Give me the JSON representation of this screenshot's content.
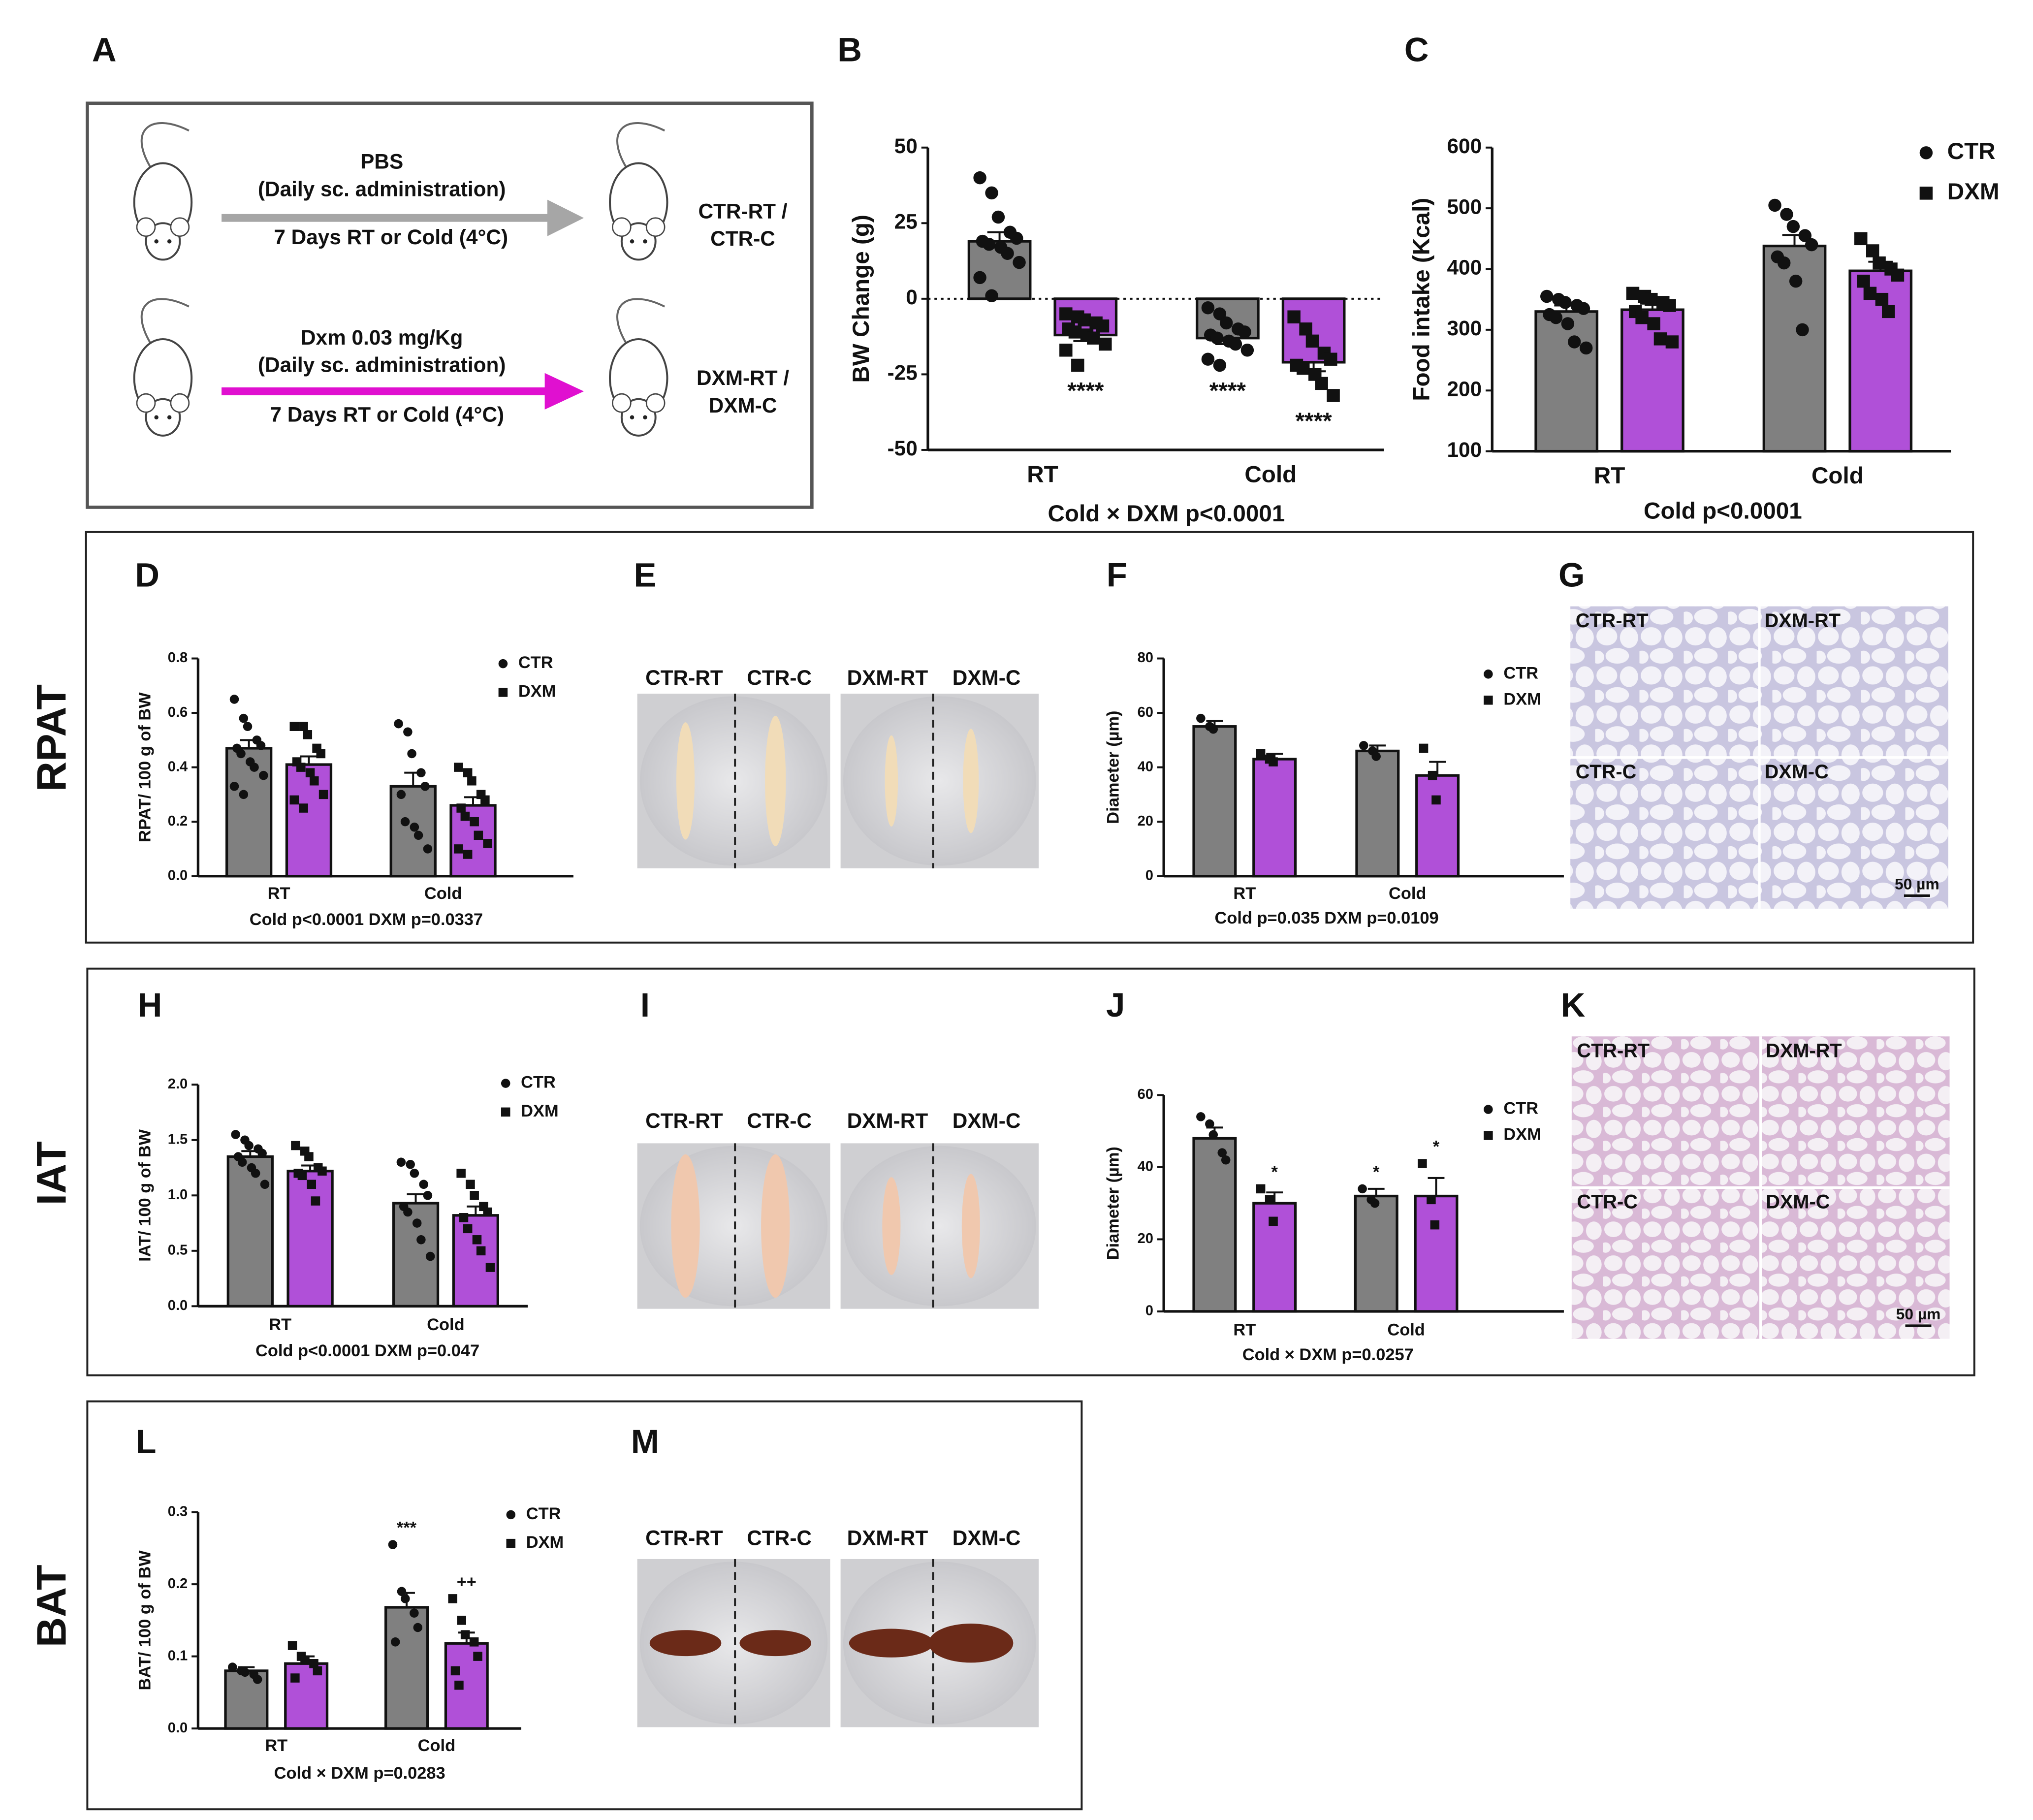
{
  "sections": [
    "RPAT",
    "IAT",
    "BAT"
  ],
  "diagram": {
    "panel": "A",
    "top": {
      "drug": "PBS",
      "route": "(Daily sc. administration)",
      "period": "7 Days RT or Cold (4°C)",
      "group_a": "CTR-RT /",
      "group_b": "CTR-C"
    },
    "bottom": {
      "drug": "Dxm 0.03 mg/Kg",
      "route": "(Daily sc. administration)",
      "period": "7 Days RT or Cold (4°C)",
      "group_a": "DXM-RT /",
      "group_b": "DXM-C"
    }
  },
  "photos": [
    {
      "panel": "E",
      "labels": [
        "CTR-RT",
        "CTR-C",
        "DXM-RT",
        "DXM-C"
      ]
    },
    {
      "panel": "I",
      "labels": [
        "CTR-RT",
        "CTR-C",
        "DXM-RT",
        "DXM-C"
      ]
    },
    {
      "panel": "M",
      "labels": [
        "CTR-RT",
        "CTR-C",
        "DXM-RT",
        "DXM-C"
      ]
    }
  ],
  "histology": [
    {
      "panel": "G",
      "labels": [
        "CTR-RT",
        "DXM-RT",
        "CTR-C",
        "DXM-C"
      ],
      "scale": "50 µm"
    },
    {
      "panel": "K",
      "labels": [
        "CTR-RT",
        "DXM-RT",
        "CTR-C",
        "DXM-C"
      ],
      "scale": "50 µm"
    }
  ],
  "chart_data": [
    {
      "type": "bar",
      "panel": "B",
      "ylabel": "BW Change (g)",
      "categories": [
        "RT",
        "Cold"
      ],
      "footnote": "Cold × DXM p<0.0001",
      "ylim": [
        -50,
        50
      ],
      "yticks": [
        -50,
        -25,
        0,
        25,
        50
      ],
      "zero_line": "dotted",
      "legend": false,
      "series": [
        {
          "color": "#808080",
          "marker": "circle",
          "values": [
            19,
            -13
          ],
          "errors": [
            3,
            2
          ],
          "significance": [
            null,
            "****"
          ],
          "points": [
            [
              40,
              35,
              27,
              22,
              20,
              19,
              18,
              17,
              15,
              12,
              7,
              1
            ],
            [
              -3,
              -5,
              -8,
              -10,
              -11,
              -12,
              -13,
              -14,
              -15,
              -17,
              -20,
              -22
            ]
          ]
        },
        {
          "color": "#b050d8",
          "marker": "square",
          "values": [
            -12,
            -21
          ],
          "errors": [
            2,
            3
          ],
          "significance": [
            "****",
            "****"
          ],
          "points": [
            [
              -5,
              -6,
              -7,
              -8,
              -9,
              -10,
              -11,
              -12,
              -13,
              -15,
              -17,
              -22
            ],
            [
              -6,
              -10,
              -14,
              -18,
              -20,
              -22,
              -23,
              -25,
              -28,
              -32
            ]
          ]
        }
      ]
    },
    {
      "type": "bar",
      "panel": "C",
      "ylabel": "Food intake (Kcal)",
      "categories": [
        "RT",
        "Cold"
      ],
      "footnote": "Cold p<0.0001",
      "ylim": [
        100,
        600
      ],
      "yticks": [
        100,
        200,
        300,
        400,
        500,
        600
      ],
      "legend": true,
      "series": [
        {
          "name": "CTR",
          "color": "#808080",
          "marker": "circle",
          "values": [
            330,
            438
          ],
          "errors": [
            10,
            18
          ],
          "points": [
            [
              355,
              350,
              345,
              340,
              335,
              325,
              320,
              310,
              280,
              270
            ],
            [
              505,
              490,
              470,
              455,
              440,
              420,
              410,
              380,
              300
            ]
          ]
        },
        {
          "name": "DXM",
          "color": "#b050d8",
          "marker": "square",
          "values": [
            333,
            397
          ],
          "errors": [
            10,
            15
          ],
          "points": [
            [
              360,
              355,
              350,
              345,
              340,
              330,
              320,
              310,
              285,
              280
            ],
            [
              450,
              430,
              410,
              400,
              390,
              380,
              360,
              350,
              330
            ]
          ]
        }
      ]
    },
    {
      "type": "bar",
      "panel": "D",
      "ylabel": "RPAT/ 100 g of BW",
      "categories": [
        "RT",
        "Cold"
      ],
      "footnote": "Cold p<0.0001   DXM p=0.0337",
      "ylim": [
        0,
        0.8
      ],
      "yticks": [
        {
          "value": 0,
          "label": "0.0"
        },
        0.2,
        0.4,
        0.6,
        0.8
      ],
      "legend": true,
      "series": [
        {
          "name": "CTR",
          "color": "#808080",
          "marker": "circle",
          "values": [
            0.47,
            0.33
          ],
          "errors": [
            0.03,
            0.05
          ],
          "points": [
            [
              0.65,
              0.58,
              0.55,
              0.5,
              0.48,
              0.47,
              0.45,
              0.42,
              0.4,
              0.37,
              0.33,
              0.3
            ],
            [
              0.56,
              0.53,
              0.45,
              0.38,
              0.33,
              0.3,
              0.2,
              0.18,
              0.15,
              0.1
            ]
          ]
        },
        {
          "name": "DXM",
          "color": "#b050d8",
          "marker": "square",
          "values": [
            0.41,
            0.26
          ],
          "errors": [
            0.03,
            0.03
          ],
          "points": [
            [
              0.55,
              0.55,
              0.52,
              0.47,
              0.45,
              0.42,
              0.4,
              0.38,
              0.35,
              0.3,
              0.28,
              0.25
            ],
            [
              0.4,
              0.38,
              0.35,
              0.3,
              0.28,
              0.25,
              0.22,
              0.2,
              0.15,
              0.12,
              0.1,
              0.08
            ]
          ]
        }
      ]
    },
    {
      "type": "bar",
      "panel": "F",
      "ylabel": "Diameter (µm)",
      "categories": [
        "RT",
        "Cold"
      ],
      "footnote": "Cold p=0.035   DXM p=0.0109",
      "ylim": [
        0,
        80
      ],
      "yticks": [
        0,
        20,
        40,
        60,
        80
      ],
      "legend": true,
      "series": [
        {
          "name": "CTR",
          "color": "#808080",
          "marker": "circle",
          "values": [
            55,
            46
          ],
          "errors": [
            2,
            2
          ],
          "points": [
            [
              58,
              55,
              54
            ],
            [
              48,
              46,
              44
            ]
          ]
        },
        {
          "name": "DXM",
          "color": "#b050d8",
          "marker": "square",
          "values": [
            43,
            37
          ],
          "errors": [
            2,
            5
          ],
          "points": [
            [
              45,
              43,
              42
            ],
            [
              47,
              37,
              28
            ]
          ]
        }
      ]
    },
    {
      "type": "bar",
      "panel": "H",
      "ylabel": "IAT/ 100 g of BW",
      "categories": [
        "RT",
        "Cold"
      ],
      "footnote": "Cold p<0.0001   DXM p=0.047",
      "ylim": [
        0,
        2
      ],
      "yticks": [
        {
          "value": 0,
          "label": "0.0"
        },
        0.5,
        {
          "value": 1,
          "label": "1.0"
        },
        1.5,
        {
          "value": 2,
          "label": "2.0"
        }
      ],
      "legend": true,
      "series": [
        {
          "name": "CTR",
          "color": "#808080",
          "marker": "circle",
          "values": [
            1.35,
            0.93
          ],
          "errors": [
            0.05,
            0.08
          ],
          "points": [
            [
              1.55,
              1.5,
              1.45,
              1.42,
              1.38,
              1.35,
              1.3,
              1.25,
              1.2,
              1.1
            ],
            [
              1.3,
              1.28,
              1.2,
              1.1,
              1.0,
              0.9,
              0.85,
              0.75,
              0.6,
              0.45
            ]
          ]
        },
        {
          "name": "DXM",
          "color": "#b050d8",
          "marker": "square",
          "values": [
            1.22,
            0.82
          ],
          "errors": [
            0.05,
            0.08
          ],
          "points": [
            [
              1.45,
              1.4,
              1.35,
              1.25,
              1.22,
              1.2,
              1.18,
              1.1,
              0.95
            ],
            [
              1.2,
              1.1,
              1.0,
              0.9,
              0.85,
              0.8,
              0.7,
              0.6,
              0.5,
              0.35
            ]
          ]
        }
      ]
    },
    {
      "type": "bar",
      "panel": "J",
      "ylabel": "Diameter (µm)",
      "categories": [
        "RT",
        "Cold"
      ],
      "footnote": "Cold × DXM p=0.0257",
      "ylim": [
        0,
        60
      ],
      "yticks": [
        0,
        20,
        40,
        60
      ],
      "legend": true,
      "series": [
        {
          "name": "CTR",
          "color": "#808080",
          "marker": "circle",
          "values": [
            48,
            32
          ],
          "errors": [
            3,
            2
          ],
          "significance": [
            null,
            "*"
          ],
          "points": [
            [
              54,
              52,
              49,
              44,
              42
            ],
            [
              34,
              31,
              30
            ]
          ]
        },
        {
          "name": "DXM",
          "color": "#b050d8",
          "marker": "square",
          "values": [
            30,
            32
          ],
          "errors": [
            3,
            5
          ],
          "significance": [
            "*",
            "*"
          ],
          "points": [
            [
              34,
              31,
              25
            ],
            [
              41,
              31,
              24
            ]
          ]
        }
      ]
    },
    {
      "type": "bar",
      "panel": "L",
      "ylabel": "BAT/ 100 g of BW",
      "categories": [
        "RT",
        "Cold"
      ],
      "footnote": "Cold × DXM p=0.0283",
      "ylim": [
        0,
        0.3
      ],
      "yticks": [
        {
          "value": 0,
          "label": "0.0"
        },
        0.1,
        0.2,
        0.3
      ],
      "legend": true,
      "series": [
        {
          "name": "CTR",
          "color": "#808080",
          "marker": "circle",
          "values": [
            0.08,
            0.168
          ],
          "errors": [
            0.005,
            0.02
          ],
          "significance": [
            null,
            "***"
          ],
          "points": [
            [
              0.085,
              0.08,
              0.078,
              0.075,
              0.068
            ],
            [
              0.255,
              0.19,
              0.18,
              0.16,
              0.14,
              0.12
            ]
          ]
        },
        {
          "name": "DXM",
          "color": "#b050d8",
          "marker": "square",
          "values": [
            0.09,
            0.118
          ],
          "errors": [
            0.01,
            0.015
          ],
          "significance": [
            null,
            "++"
          ],
          "points": [
            [
              0.115,
              0.1,
              0.095,
              0.09,
              0.08,
              0.07
            ],
            [
              0.18,
              0.15,
              0.13,
              0.12,
              0.1,
              0.08,
              0.06
            ]
          ]
        }
      ]
    }
  ]
}
